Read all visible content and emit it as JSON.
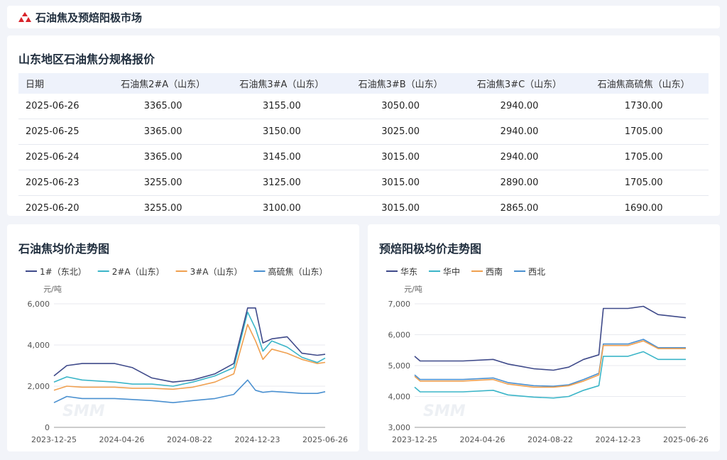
{
  "header": {
    "title": "石油焦及预焙阳极市场",
    "brand_color": "#d8232a"
  },
  "table": {
    "title": "山东地区石油焦分规格报价",
    "columns": [
      "日期",
      "石油焦2#A（山东）",
      "石油焦3#A（山东）",
      "石油焦3#B（山东）",
      "石油焦3#C（山东）",
      "石油焦高硫焦（山东）"
    ],
    "rows": [
      [
        "2025-06-26",
        "3365.00",
        "3155.00",
        "3050.00",
        "2940.00",
        "1730.00"
      ],
      [
        "2025-06-25",
        "3365.00",
        "3150.00",
        "3025.00",
        "2940.00",
        "1705.00"
      ],
      [
        "2025-06-24",
        "3365.00",
        "3145.00",
        "3015.00",
        "2940.00",
        "1705.00"
      ],
      [
        "2025-06-23",
        "3255.00",
        "3125.00",
        "3015.00",
        "2890.00",
        "1705.00"
      ],
      [
        "2025-06-20",
        "3255.00",
        "3100.00",
        "3015.00",
        "2865.00",
        "1690.00"
      ]
    ]
  },
  "charts": [
    {
      "title": "石油焦均价走势图"
    },
    {
      "title": "预焙阳极均价走势图"
    }
  ],
  "chart_data": [
    {
      "type": "line",
      "title": "石油焦均价走势图",
      "ylabel": "元/吨",
      "ylim": [
        0,
        6000
      ],
      "yticks": [
        "0",
        "2,000",
        "4,000",
        "6,000"
      ],
      "xticks": [
        "2023-12-25",
        "2024-04-26",
        "2024-08-22",
        "2024-12-23",
        "2025-06-26"
      ],
      "x": [
        "2023-12-25",
        "2024-01-20",
        "2024-02-20",
        "2024-04-26",
        "2024-06-01",
        "2024-07-10",
        "2024-08-22",
        "2024-10-01",
        "2024-11-15",
        "2024-12-23",
        "2025-01-20",
        "2025-02-05",
        "2025-02-20",
        "2025-03-10",
        "2025-04-10",
        "2025-05-10",
        "2025-06-10",
        "2025-06-26"
      ],
      "series": [
        {
          "name": "1#（东北）",
          "color": "#3f4a8a",
          "values": [
            2500,
            3000,
            3100,
            3100,
            2900,
            2400,
            2200,
            2300,
            2600,
            3100,
            5800,
            5800,
            4100,
            4300,
            4400,
            3600,
            3500,
            3550
          ]
        },
        {
          "name": "2#A（山东）",
          "color": "#3bb5c8",
          "values": [
            2200,
            2450,
            2300,
            2200,
            2100,
            2100,
            2000,
            2200,
            2500,
            2900,
            5600,
            4800,
            3700,
            4200,
            3900,
            3400,
            3150,
            3365
          ]
        },
        {
          "name": "3#A（山东）",
          "color": "#f0a050",
          "values": [
            1800,
            2000,
            1950,
            1950,
            1900,
            1900,
            1850,
            1950,
            2200,
            2600,
            5000,
            4200,
            3300,
            3800,
            3600,
            3300,
            3100,
            3155
          ]
        },
        {
          "name": "高硫焦（山东）",
          "color": "#4a90d0",
          "values": [
            1200,
            1500,
            1400,
            1400,
            1350,
            1300,
            1200,
            1300,
            1400,
            1600,
            2300,
            1800,
            1700,
            1750,
            1700,
            1650,
            1650,
            1730
          ]
        }
      ],
      "legend": "top",
      "watermark": "SMM"
    },
    {
      "type": "line",
      "title": "预焙阳极均价走势图",
      "ylabel": "元/吨",
      "ylim": [
        3000,
        7000
      ],
      "yticks": [
        "3,000",
        "4,000",
        "5,000",
        "6,000",
        "7,000"
      ],
      "xticks": [
        "2023-12-25",
        "2024-04-26",
        "2024-08-22",
        "2024-12-23",
        "2025-06-26"
      ],
      "x": [
        "2023-12-25",
        "2024-01-05",
        "2024-04-01",
        "2024-06-01",
        "2024-07-01",
        "2024-08-22",
        "2024-10-01",
        "2024-11-01",
        "2024-12-01",
        "2025-01-01",
        "2025-01-10",
        "2025-03-01",
        "2025-04-01",
        "2025-05-01",
        "2025-06-26"
      ],
      "series": [
        {
          "name": "华东",
          "color": "#3f4a8a",
          "values": [
            5300,
            5150,
            5150,
            5200,
            5050,
            4900,
            4850,
            4950,
            5200,
            5350,
            6850,
            6850,
            6920,
            6650,
            6550
          ]
        },
        {
          "name": "华中",
          "color": "#3bb5c8",
          "values": [
            4300,
            4150,
            4150,
            4200,
            4050,
            3980,
            3950,
            4000,
            4200,
            4350,
            5300,
            5300,
            5450,
            5200,
            5200
          ]
        },
        {
          "name": "西南",
          "color": "#f0a050",
          "values": [
            4650,
            4500,
            4500,
            4550,
            4400,
            4300,
            4300,
            4350,
            4500,
            4700,
            5650,
            5650,
            5800,
            5550,
            5550
          ]
        },
        {
          "name": "西北",
          "color": "#4a90d0",
          "values": [
            4700,
            4550,
            4550,
            4600,
            4450,
            4350,
            4330,
            4380,
            4550,
            4750,
            5700,
            5700,
            5850,
            5580,
            5580
          ]
        }
      ],
      "legend": "top",
      "watermark": "SMM"
    }
  ]
}
